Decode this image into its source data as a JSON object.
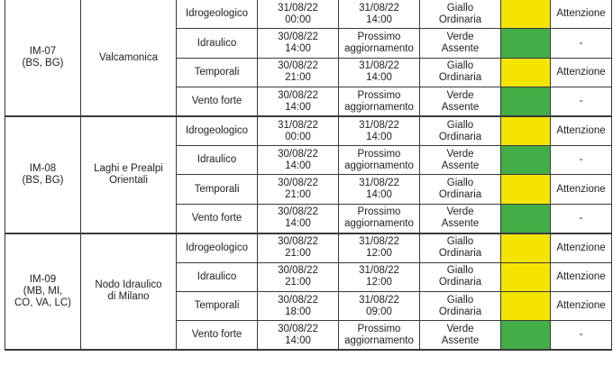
{
  "colors": {
    "giallo": "#f4e400",
    "verde": "#43ad47"
  },
  "zones": [
    {
      "code": "IM-07\n(BS, BG)",
      "name": "Valcamonica",
      "rows": [
        {
          "risk": "Idrogeologico",
          "from": "31/08/22\n00:00",
          "to": "31/08/22\n14:00",
          "level": "Giallo\nOrdinaria",
          "color": "yellow",
          "note": "Attenzione"
        },
        {
          "risk": "Idraulico",
          "from": "30/08/22\n14:00",
          "to": "Prossimo\naggiornamento",
          "level": "Verde\nAssente",
          "color": "green",
          "note": "-"
        },
        {
          "risk": "Temporali",
          "from": "30/08/22\n21:00",
          "to": "31/08/22\n14:00",
          "level": "Giallo\nOrdinaria",
          "color": "yellow",
          "note": "Attenzione"
        },
        {
          "risk": "Vento forte",
          "from": "30/08/22\n14:00",
          "to": "Prossimo\naggiornamento",
          "level": "Verde\nAssente",
          "color": "green",
          "note": "-"
        }
      ]
    },
    {
      "code": "IM-08\n(BS, BG)",
      "name": "Laghi e Prealpi\nOrientali",
      "rows": [
        {
          "risk": "Idrogeologico",
          "from": "31/08/22\n00:00",
          "to": "31/08/22\n14:00",
          "level": "Giallo\nOrdinaria",
          "color": "yellow",
          "note": "Attenzione"
        },
        {
          "risk": "Idraulico",
          "from": "30/08/22\n14:00",
          "to": "Prossimo\naggiornamento",
          "level": "Verde\nAssente",
          "color": "green",
          "note": "-"
        },
        {
          "risk": "Temporali",
          "from": "30/08/22\n21:00",
          "to": "31/08/22\n14:00",
          "level": "Giallo\nOrdinaria",
          "color": "yellow",
          "note": "Attenzione"
        },
        {
          "risk": "Vento forte",
          "from": "30/08/22\n14:00",
          "to": "Prossimo\naggiornamento",
          "level": "Verde\nAssente",
          "color": "green",
          "note": "-"
        }
      ]
    },
    {
      "code": "IM-09\n(MB, MI,\nCO, VA, LC)",
      "name": "Nodo Idraulico\ndi Milano",
      "rows": [
        {
          "risk": "Idrogeologico",
          "from": "30/08/22\n21:00",
          "to": "31/08/22\n12:00",
          "level": "Giallo\nOrdinaria",
          "color": "yellow",
          "note": "Attenzione"
        },
        {
          "risk": "Idraulico",
          "from": "30/08/22\n21:00",
          "to": "31/08/22\n12:00",
          "level": "Giallo\nOrdinaria",
          "color": "yellow",
          "note": "Attenzione"
        },
        {
          "risk": "Temporali",
          "from": "30/08/22\n18:00",
          "to": "31/08/22\n09:00",
          "level": "Giallo\nOrdinaria",
          "color": "yellow",
          "note": "Attenzione"
        },
        {
          "risk": "Vento forte",
          "from": "30/08/22\n14:00",
          "to": "Prossimo\naggiornamento",
          "level": "Verde\nAssente",
          "color": "green",
          "note": "-"
        }
      ]
    }
  ]
}
